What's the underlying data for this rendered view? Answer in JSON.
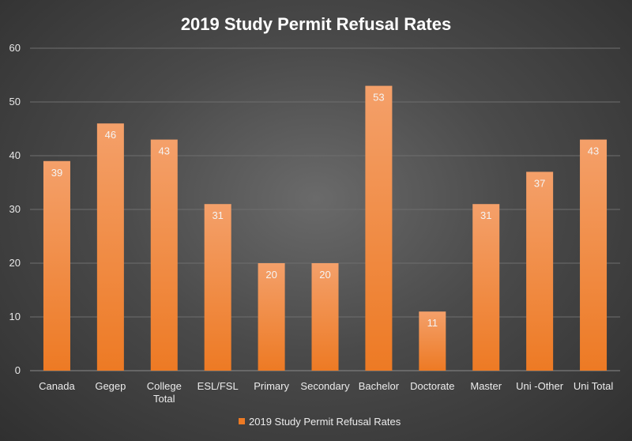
{
  "chart_data": {
    "type": "bar",
    "title": "2019 Study Permit Refusal Rates",
    "categories": [
      "Canada",
      "Gegep",
      "College Total",
      "ESL/FSL",
      "Primary",
      "Secondary",
      "Bachelor",
      "Doctorate",
      "Master",
      "Uni -Other",
      "Uni Total"
    ],
    "series": [
      {
        "name": "2019 Study Permit Refusal Rates",
        "values": [
          39,
          46,
          43,
          31,
          20,
          20,
          53,
          11,
          31,
          37,
          43
        ]
      }
    ],
    "yticks": [
      "0",
      "10",
      "20",
      "30",
      "40",
      "50",
      "60"
    ],
    "ylim": [
      0,
      60
    ],
    "grid": true,
    "legend_position": "bottom",
    "colors": {
      "bar_top": "#f4a06a",
      "bar_bottom": "#ed7a24",
      "grid": "#6e6e6e",
      "axis": "#8a8a8a"
    }
  }
}
